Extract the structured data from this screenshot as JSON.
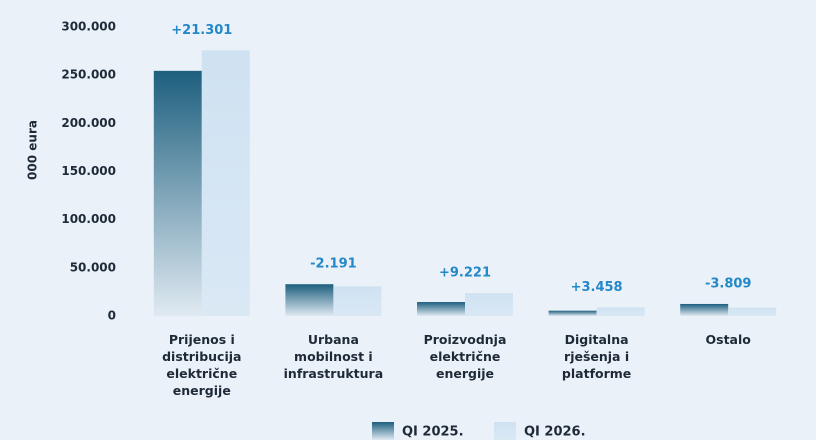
{
  "chart_data": {
    "type": "bar",
    "y_label": "000 eura",
    "categories": [
      "Prijenos i\ndistribucija\nelektrične\nenergije",
      "Urbana\nmobilnost i\ninfrastruktura",
      "Proizvodnja\nelektrične\nenergije",
      "Digitalna\nrješenja i\nplatforme",
      "Ostalo"
    ],
    "series": [
      {
        "name": "QI 2025.",
        "color": "#1d5f7e",
        "values": [
          254500,
          33000,
          14500,
          5500,
          12500
        ]
      },
      {
        "name": "QI 2026.",
        "color": "#cfe2f2",
        "values": [
          275800,
          30800,
          23700,
          9000,
          8700
        ]
      }
    ],
    "annotations": [
      "+21.301",
      "-2.191",
      "+9.221",
      "+3.458",
      "-3.809"
    ],
    "annotation_color": "#2388c8",
    "ylim": [
      0,
      300000
    ],
    "yticks": [
      0,
      {
        "value": 50000,
        "label": "50.000"
      },
      {
        "value": 100000,
        "label": "100.000"
      },
      {
        "value": 150000,
        "label": "150.000"
      },
      {
        "value": 200000,
        "label": "200.000"
      },
      {
        "value": 250000,
        "label": "250.000"
      },
      {
        "value": 300000,
        "label": "300.000"
      }
    ],
    "grid": false
  }
}
